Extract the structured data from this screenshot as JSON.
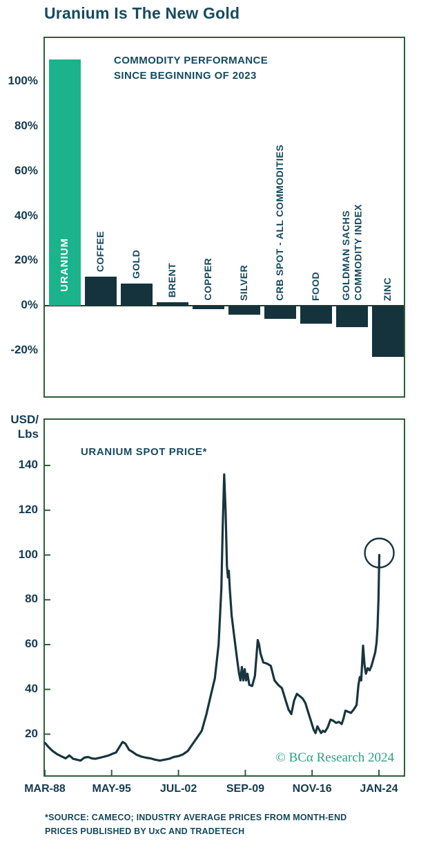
{
  "title": "Uranium Is The New Gold",
  "colors": {
    "accent_green": "#1bb38b",
    "dark_bar": "#14333c",
    "line": "#17353e",
    "border_green": "#2c5e38",
    "text_dark": "#164a5f",
    "watermark_green": "#27a381"
  },
  "chart_data": [
    {
      "type": "bar",
      "title": "COMMODITY PERFORMANCE\nSINCE BEGINNING OF 2023",
      "categories": [
        "URANIUM",
        "COFFEE",
        "GOLD",
        "BRENT",
        "COPPER",
        "SILVER",
        "CRB SPOT - ALL COMMODITIES",
        "FOOD",
        "GOLDMAN SACHS\nCOMMODITY INDEX",
        "ZINC"
      ],
      "values": [
        110,
        13,
        10,
        1.5,
        -1.5,
        -4,
        -6,
        -8,
        -9.5,
        -23
      ],
      "highlight_category": "URANIUM",
      "ylabel": "%",
      "yticks": [
        100,
        80,
        60,
        40,
        20,
        0,
        -20
      ],
      "ytick_labels": [
        "100%",
        "80%",
        "60%",
        "40%",
        "20%",
        "0%",
        "-20%"
      ],
      "ylim": [
        -41,
        120
      ],
      "grid": false,
      "legend": "none"
    },
    {
      "type": "line",
      "title": "URANIUM SPOT PRICE*",
      "ylabel": "USD/\nLbs",
      "yticks": [
        140,
        120,
        100,
        80,
        60,
        40,
        20
      ],
      "xtick_labels": [
        "MAR-88",
        "MAY-95",
        "JUL-02",
        "SEP-09",
        "NOV-16",
        "JAN-24"
      ],
      "xtick_years": [
        1988.17,
        1995.33,
        2002.5,
        2009.67,
        2016.83,
        2024.0
      ],
      "ylim": [
        1,
        161
      ],
      "xlim": [
        1988.02,
        2026.6
      ],
      "grid": false,
      "annotation": {
        "type": "circle",
        "x": 2024.04,
        "y": 100
      },
      "watermark": "© BCα Research 2024",
      "series": [
        {
          "name": "Uranium spot price (USD/Lbs)",
          "points": [
            [
              1988.2,
              16
            ],
            [
              1988.5,
              14.5
            ],
            [
              1989.0,
              12.5
            ],
            [
              1989.5,
              11
            ],
            [
              1990.0,
              10
            ],
            [
              1990.4,
              9.2
            ],
            [
              1990.8,
              10.5
            ],
            [
              1991.2,
              9.0
            ],
            [
              1991.6,
              8.6
            ],
            [
              1992.0,
              8.2
            ],
            [
              1992.4,
              9.5
            ],
            [
              1992.8,
              9.8
            ],
            [
              1993.2,
              9.2
            ],
            [
              1993.6,
              9.0
            ],
            [
              1994.0,
              9.4
            ],
            [
              1994.4,
              9.8
            ],
            [
              1995.0,
              10.5
            ],
            [
              1995.4,
              11.2
            ],
            [
              1995.8,
              11.8
            ],
            [
              1996.2,
              14.5
            ],
            [
              1996.5,
              16.5
            ],
            [
              1996.8,
              15.8
            ],
            [
              1997.2,
              13.0
            ],
            [
              1997.6,
              12.0
            ],
            [
              1998.0,
              10.8
            ],
            [
              1998.5,
              10.0
            ],
            [
              1999.0,
              9.5
            ],
            [
              1999.5,
              9.2
            ],
            [
              2000.0,
              8.6
            ],
            [
              2000.5,
              8.2
            ],
            [
              2001.0,
              8.6
            ],
            [
              2001.5,
              9.0
            ],
            [
              2002.0,
              9.8
            ],
            [
              2002.5,
              10.2
            ],
            [
              2003.0,
              11.0
            ],
            [
              2003.5,
              12.5
            ],
            [
              2004.0,
              15.5
            ],
            [
              2004.5,
              18.5
            ],
            [
              2005.0,
              21.5
            ],
            [
              2005.5,
              29
            ],
            [
              2006.0,
              38
            ],
            [
              2006.4,
              45
            ],
            [
              2006.8,
              60
            ],
            [
              2007.1,
              85
            ],
            [
              2007.25,
              113
            ],
            [
              2007.4,
              136
            ],
            [
              2007.55,
              120
            ],
            [
              2007.7,
              95
            ],
            [
              2007.8,
              90
            ],
            [
              2007.9,
              93
            ],
            [
              2008.0,
              85
            ],
            [
              2008.2,
              73
            ],
            [
              2008.5,
              63
            ],
            [
              2008.8,
              53
            ],
            [
              2009.0,
              47
            ],
            [
              2009.15,
              44
            ],
            [
              2009.3,
              50
            ],
            [
              2009.45,
              44
            ],
            [
              2009.6,
              49
            ],
            [
              2009.75,
              44
            ],
            [
              2009.9,
              47
            ],
            [
              2010.1,
              42
            ],
            [
              2010.4,
              41.5
            ],
            [
              2010.7,
              46
            ],
            [
              2011.0,
              62
            ],
            [
              2011.15,
              60
            ],
            [
              2011.3,
              56
            ],
            [
              2011.6,
              52
            ],
            [
              2012.0,
              51.5
            ],
            [
              2012.4,
              50.5
            ],
            [
              2012.8,
              44
            ],
            [
              2013.2,
              42
            ],
            [
              2013.6,
              40.5
            ],
            [
              2014.0,
              35
            ],
            [
              2014.3,
              31
            ],
            [
              2014.6,
              29
            ],
            [
              2014.9,
              35
            ],
            [
              2015.2,
              38
            ],
            [
              2015.5,
              37
            ],
            [
              2015.8,
              36
            ],
            [
              2016.1,
              34
            ],
            [
              2016.4,
              30
            ],
            [
              2016.7,
              26
            ],
            [
              2017.0,
              22
            ],
            [
              2017.2,
              20.5
            ],
            [
              2017.4,
              23.5
            ],
            [
              2017.6,
              22
            ],
            [
              2017.8,
              20.5
            ],
            [
              2018.0,
              21.5
            ],
            [
              2018.2,
              21
            ],
            [
              2018.5,
              23
            ],
            [
              2018.8,
              26.5
            ],
            [
              2019.1,
              26
            ],
            [
              2019.4,
              25
            ],
            [
              2019.7,
              25.5
            ],
            [
              2020.0,
              24.5
            ],
            [
              2020.2,
              27
            ],
            [
              2020.4,
              30.5
            ],
            [
              2020.7,
              30
            ],
            [
              2021.0,
              29.5
            ],
            [
              2021.3,
              31
            ],
            [
              2021.6,
              33
            ],
            [
              2021.8,
              42
            ],
            [
              2021.95,
              45.5
            ],
            [
              2022.1,
              44
            ],
            [
              2022.3,
              59.5
            ],
            [
              2022.45,
              51
            ],
            [
              2022.6,
              47
            ],
            [
              2022.8,
              49.5
            ],
            [
              2023.0,
              48.5
            ],
            [
              2023.2,
              50.5
            ],
            [
              2023.4,
              53.5
            ],
            [
              2023.6,
              56.5
            ],
            [
              2023.75,
              61
            ],
            [
              2023.85,
              68
            ],
            [
              2023.95,
              80
            ],
            [
              2024.04,
              100
            ]
          ]
        }
      ]
    }
  ],
  "footer": {
    "source_note": "*SOURCE: CAMECO; INDUSTRY AVERAGE PRICES FROM MONTH-END\nPRICES PUBLISHED BY UxC AND TRADETECH"
  }
}
